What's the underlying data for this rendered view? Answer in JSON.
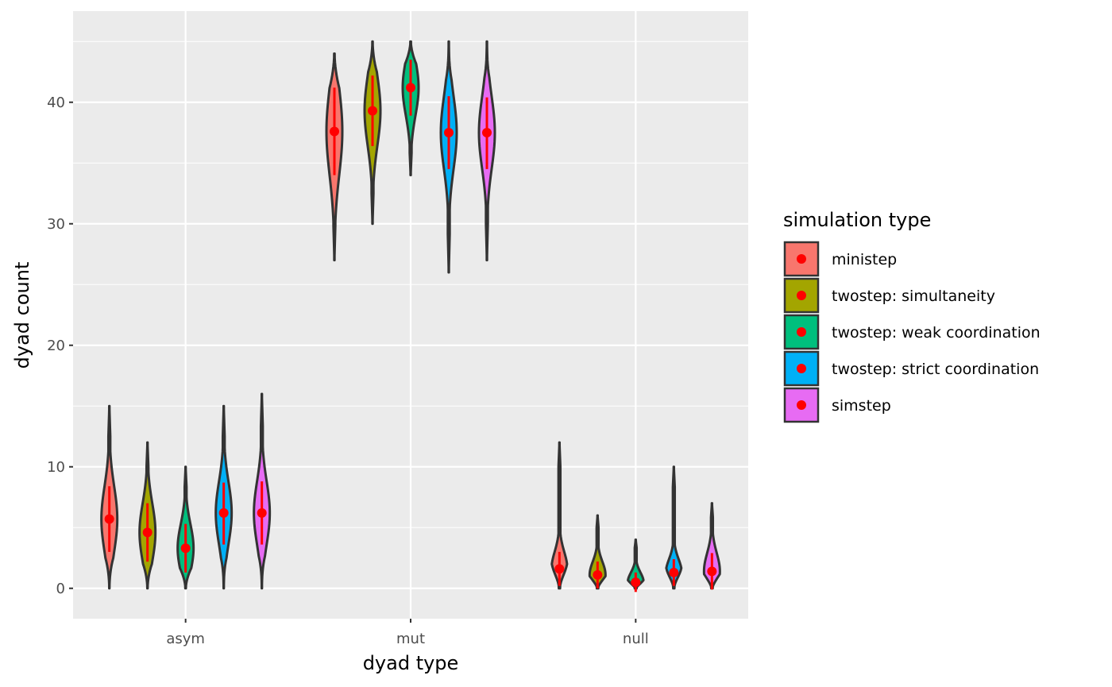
{
  "chart_data": {
    "type": "violin",
    "xlabel": "dyad type",
    "ylabel": "dyad count",
    "categories": [
      "asym",
      "mut",
      "null"
    ],
    "yticks": [
      0,
      10,
      20,
      30,
      40
    ],
    "ylim": [
      -2.5,
      47.5
    ],
    "grid": true,
    "legend": {
      "title": "simulation type",
      "position": "right"
    },
    "series": [
      {
        "name": "ministep",
        "color": "#F8766D",
        "points": [
          {
            "category": "asym",
            "min": 0,
            "max": 15,
            "mean": 5.7,
            "sd_low": 3.0,
            "sd_high": 8.4
          },
          {
            "category": "mut",
            "min": 27,
            "max": 44,
            "mean": 37.6,
            "sd_low": 34.0,
            "sd_high": 41.2
          },
          {
            "category": "null",
            "min": 0,
            "max": 12,
            "mean": 1.6,
            "sd_low": 0.2,
            "sd_high": 3.0
          }
        ]
      },
      {
        "name": "twostep: simultaneity",
        "color": "#A3A500",
        "points": [
          {
            "category": "asym",
            "min": 0,
            "max": 12,
            "mean": 4.6,
            "sd_low": 2.2,
            "sd_high": 7.0
          },
          {
            "category": "mut",
            "min": 30,
            "max": 45,
            "mean": 39.3,
            "sd_low": 36.4,
            "sd_high": 42.2
          },
          {
            "category": "null",
            "min": 0,
            "max": 6,
            "mean": 1.1,
            "sd_low": 0.0,
            "sd_high": 2.2
          }
        ]
      },
      {
        "name": "twostep: weak coordination",
        "color": "#00BF7D",
        "points": [
          {
            "category": "asym",
            "min": 0,
            "max": 10,
            "mean": 3.3,
            "sd_low": 1.3,
            "sd_high": 5.3
          },
          {
            "category": "mut",
            "min": 34,
            "max": 45,
            "mean": 41.2,
            "sd_low": 38.9,
            "sd_high": 43.5
          },
          {
            "category": "null",
            "min": 0,
            "max": 4,
            "mean": 0.5,
            "sd_low": -0.3,
            "sd_high": 1.3
          }
        ]
      },
      {
        "name": "twostep: strict coordination",
        "color": "#00B0F6",
        "points": [
          {
            "category": "asym",
            "min": 0,
            "max": 15,
            "mean": 6.2,
            "sd_low": 3.6,
            "sd_high": 8.7
          },
          {
            "category": "mut",
            "min": 26,
            "max": 45,
            "mean": 37.5,
            "sd_low": 34.5,
            "sd_high": 40.5
          },
          {
            "category": "null",
            "min": 0,
            "max": 10,
            "mean": 1.3,
            "sd_low": 0.2,
            "sd_high": 2.4
          }
        ]
      },
      {
        "name": "simstep",
        "color": "#E76BF3",
        "points": [
          {
            "category": "asym",
            "min": 0,
            "max": 16,
            "mean": 6.2,
            "sd_low": 3.6,
            "sd_high": 8.8
          },
          {
            "category": "mut",
            "min": 27,
            "max": 45,
            "mean": 37.5,
            "sd_low": 34.5,
            "sd_high": 40.4
          },
          {
            "category": "null",
            "min": 0,
            "max": 7,
            "mean": 1.4,
            "sd_low": -0.1,
            "sd_high": 2.9
          }
        ]
      }
    ],
    "summary_marker": {
      "color": "#FF0000",
      "shape": "point-range"
    }
  }
}
